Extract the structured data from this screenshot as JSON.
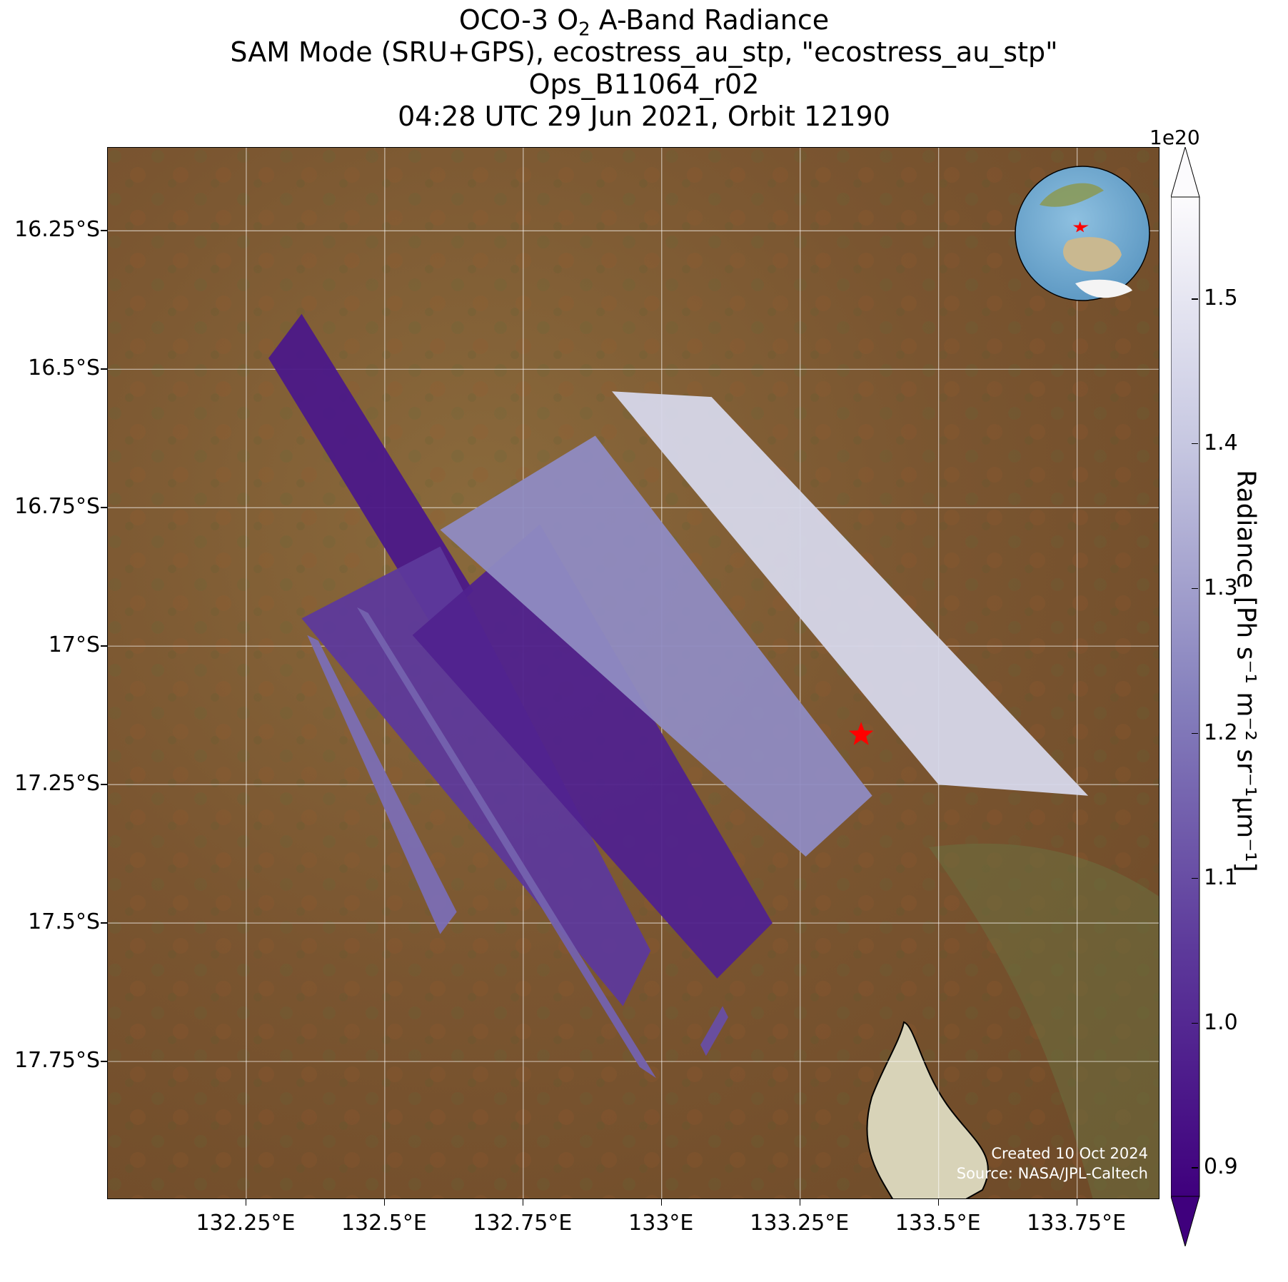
{
  "title": {
    "line1_prefix": "OCO-3 O",
    "line1_sub": "2",
    "line1_suffix": " A-Band Radiance",
    "line2": "SAM Mode (SRU+GPS), ecostress_au_stp, \"ecostress_au_stp\"",
    "line3": "Ops_B11064_r02",
    "line4": "04:28 UTC 29 Jun 2021, Orbit 12190"
  },
  "map": {
    "lon_range": [
      132.0,
      133.9
    ],
    "lat_range": [
      -18.0,
      -16.1
    ],
    "x_ticks": [
      "132.25°E",
      "132.5°E",
      "132.75°E",
      "133°E",
      "133.25°E",
      "133.5°E",
      "133.75°E"
    ],
    "y_ticks": [
      "16.25°S",
      "16.5°S",
      "16.75°S",
      "17°S",
      "17.25°S",
      "17.5°S",
      "17.75°S"
    ],
    "target_marker": {
      "lon": 133.36,
      "lat": -17.16,
      "color": "#ff0000",
      "shape": "star"
    },
    "background": "satellite imagery",
    "inset": "globe-locator"
  },
  "colorbar": {
    "label": "Radiance [Ph s⁻¹ m⁻² sr⁻¹μm⁻¹]",
    "multiplier": "1e20",
    "ticks": [
      "0.9",
      "1.0",
      "1.1",
      "1.2",
      "1.3",
      "1.4",
      "1.5"
    ],
    "range": [
      0.88,
      1.57
    ],
    "colormap": "Purples_r",
    "extend": "both"
  },
  "chart_data": {
    "type": "heatmap",
    "title": "OCO-3 O2 A-Band Radiance",
    "xlabel": "",
    "ylabel": "",
    "xlim": [
      132.0,
      133.9
    ],
    "ylim": [
      -18.0,
      -16.1
    ],
    "value_range": [
      0.88,
      1.57
    ],
    "value_multiplier": 1e+20,
    "swaths": [
      {
        "polygon": [
          [
            132.29,
            -16.48
          ],
          [
            132.35,
            -16.4
          ],
          [
            132.66,
            -16.9
          ],
          [
            132.59,
            -16.97
          ]
        ],
        "value": 0.95
      },
      {
        "polygon": [
          [
            132.35,
            -16.95
          ],
          [
            132.6,
            -16.82
          ],
          [
            132.98,
            -17.55
          ],
          [
            132.93,
            -17.65
          ]
        ],
        "value": 1.05
      },
      {
        "polygon": [
          [
            132.55,
            -16.98
          ],
          [
            132.78,
            -16.78
          ],
          [
            133.2,
            -17.5
          ],
          [
            133.1,
            -17.6
          ]
        ],
        "value": 0.98
      },
      {
        "polygon": [
          [
            132.6,
            -16.79
          ],
          [
            132.88,
            -16.62
          ],
          [
            133.38,
            -17.27
          ],
          [
            133.26,
            -17.38
          ]
        ],
        "value": 1.25
      },
      {
        "polygon": [
          [
            132.91,
            -16.54
          ],
          [
            133.09,
            -16.55
          ],
          [
            133.77,
            -17.27
          ],
          [
            133.5,
            -17.25
          ]
        ],
        "value": 1.45
      },
      {
        "polygon": [
          [
            132.36,
            -16.98
          ],
          [
            132.38,
            -16.99
          ],
          [
            132.63,
            -17.48
          ],
          [
            132.6,
            -17.52
          ]
        ],
        "value": 1.18
      },
      {
        "polygon": [
          [
            132.45,
            -16.93
          ],
          [
            132.47,
            -16.94
          ],
          [
            132.99,
            -17.78
          ],
          [
            132.96,
            -17.76
          ]
        ],
        "value": 1.15
      },
      {
        "polygon": [
          [
            133.07,
            -17.72
          ],
          [
            133.11,
            -17.65
          ],
          [
            133.12,
            -17.67
          ],
          [
            133.08,
            -17.74
          ]
        ],
        "value": 1.1
      }
    ]
  },
  "credits": {
    "created": "Created 10 Oct 2024",
    "source": "Source: NASA/JPL-Caltech"
  }
}
